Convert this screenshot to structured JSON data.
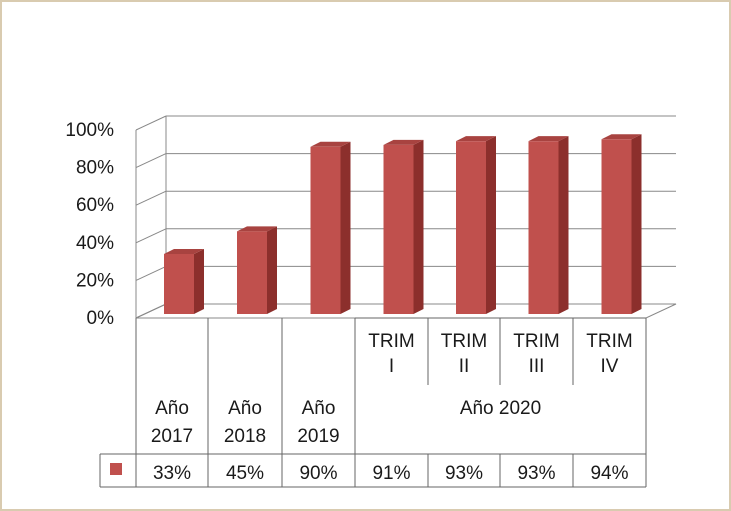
{
  "colors": {
    "bar_front": "#c0504d",
    "bar_side": "#8c2f2c",
    "bar_top": "#a84340",
    "grid": "#888888",
    "frame": "#d9cbb0"
  },
  "chart_data": {
    "type": "bar",
    "style": "3d-column",
    "title": "",
    "xlabel": "",
    "ylabel": "",
    "ylim": [
      0,
      100
    ],
    "y_ticks": [
      "0%",
      "20%",
      "40%",
      "60%",
      "80%",
      "100%"
    ],
    "grid": true,
    "legend": "in data table (left of values row)",
    "categories": [
      {
        "top": "",
        "bottom": "Año 2017"
      },
      {
        "top": "",
        "bottom": "Año 2018"
      },
      {
        "top": "",
        "bottom": "Año 2019"
      },
      {
        "top": "TRIM I",
        "bottom": "Año 2020"
      },
      {
        "top": "TRIM II",
        "bottom": "Año 2020"
      },
      {
        "top": "TRIM III",
        "bottom": "Año 2020"
      },
      {
        "top": "TRIM IV",
        "bottom": "Año 2020"
      }
    ],
    "category_labels_top": [
      "",
      "",
      "",
      "TRIM I",
      "TRIM II",
      "TRIM III",
      "TRIM IV"
    ],
    "category_labels_bottom": [
      "Año 2017",
      "Año 2018",
      "Año 2019"
    ],
    "group_label": "Año 2020",
    "series": [
      {
        "values": [
          33,
          45,
          90,
          91,
          93,
          93,
          94
        ],
        "value_labels": [
          "33%",
          "45%",
          "90%",
          "91%",
          "93%",
          "93%",
          "94%"
        ]
      }
    ]
  }
}
